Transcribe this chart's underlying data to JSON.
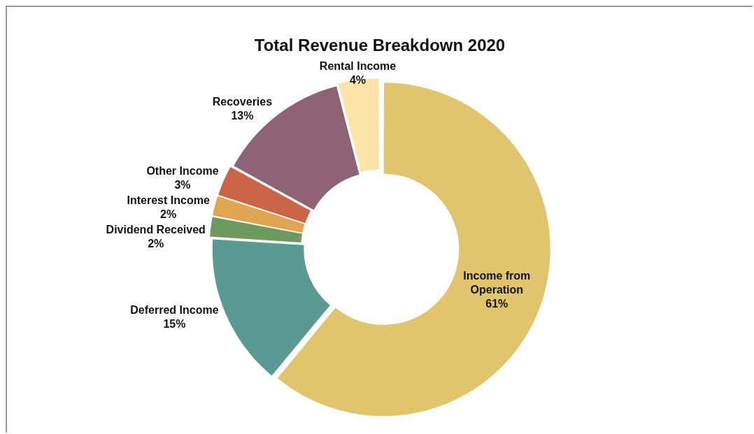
{
  "chart_data": {
    "type": "donut",
    "title": "Total Revenue Breakdown 2020",
    "categories": [
      "Income from Operation",
      "Deferred Income",
      "Dividend Received",
      "Interest Income",
      "Other Income",
      "Recoveries",
      "Rental Income"
    ],
    "values": [
      61,
      15,
      2,
      2,
      3,
      13,
      4
    ],
    "value_labels": [
      "61%",
      "15%",
      "2%",
      "2%",
      "3%",
      "13%",
      "4%"
    ],
    "colors": [
      "#e0c56e",
      "#5a9a92",
      "#6f9a5e",
      "#e0a550",
      "#cc6448",
      "#8e6374",
      "#fce4a8"
    ],
    "legend": false
  }
}
